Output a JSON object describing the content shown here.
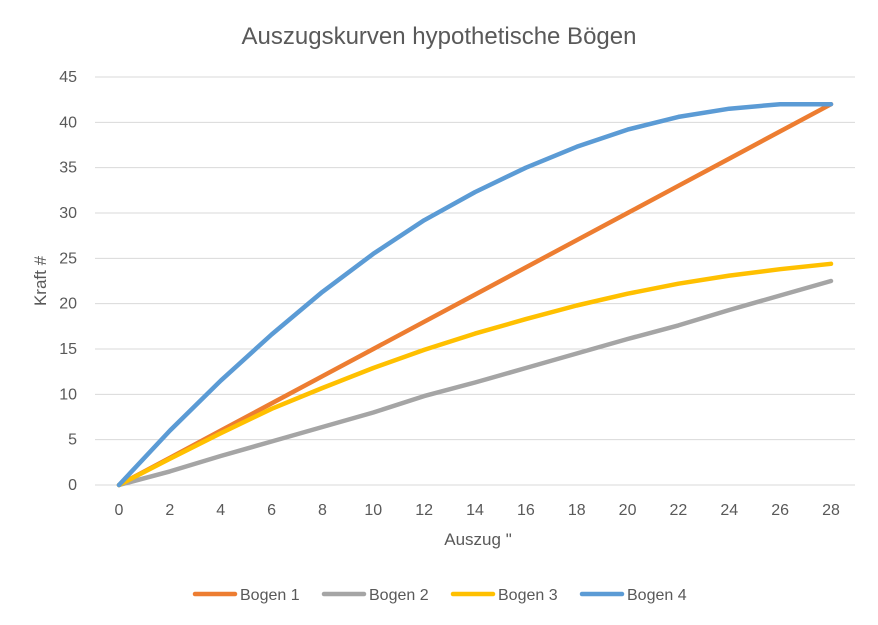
{
  "chart_data": {
    "type": "line",
    "title": "Auszugskurven hypothetische Bögen",
    "xlabel": "Auszug \"",
    "ylabel": "Kraft #",
    "x": [
      0,
      2,
      4,
      6,
      8,
      10,
      12,
      14,
      16,
      18,
      20,
      22,
      24,
      26,
      28
    ],
    "xlim": [
      0,
      28
    ],
    "ylim": [
      0,
      45
    ],
    "xticks": [
      0,
      2,
      4,
      6,
      8,
      10,
      12,
      14,
      16,
      18,
      20,
      22,
      24,
      26,
      28
    ],
    "yticks": [
      0,
      5,
      10,
      15,
      20,
      25,
      30,
      35,
      40,
      45
    ],
    "grid": true,
    "legend_position": "bottom",
    "series": [
      {
        "name": "Bogen 1",
        "color": "#ed7d31",
        "values": [
          0,
          3,
          6,
          9,
          12,
          15,
          18,
          21,
          24,
          27,
          30,
          33,
          36,
          39,
          42
        ]
      },
      {
        "name": "Bogen 2",
        "color": "#a5a5a5",
        "values": [
          0,
          1.5,
          3.2,
          4.8,
          6.4,
          8,
          9.8,
          11.3,
          12.9,
          14.5,
          16.1,
          17.6,
          19.3,
          20.9,
          22.5
        ]
      },
      {
        "name": "Bogen 3",
        "color": "#ffc000",
        "values": [
          0,
          2.9,
          5.7,
          8.4,
          10.7,
          12.9,
          14.9,
          16.7,
          18.3,
          19.8,
          21.1,
          22.2,
          23.1,
          23.8,
          24.4
        ]
      },
      {
        "name": "Bogen 4",
        "color": "#5b9bd5",
        "values": [
          0,
          6,
          11.5,
          16.6,
          21.3,
          25.5,
          29.2,
          32.3,
          35,
          37.3,
          39.2,
          40.6,
          41.5,
          42,
          42
        ]
      }
    ]
  }
}
